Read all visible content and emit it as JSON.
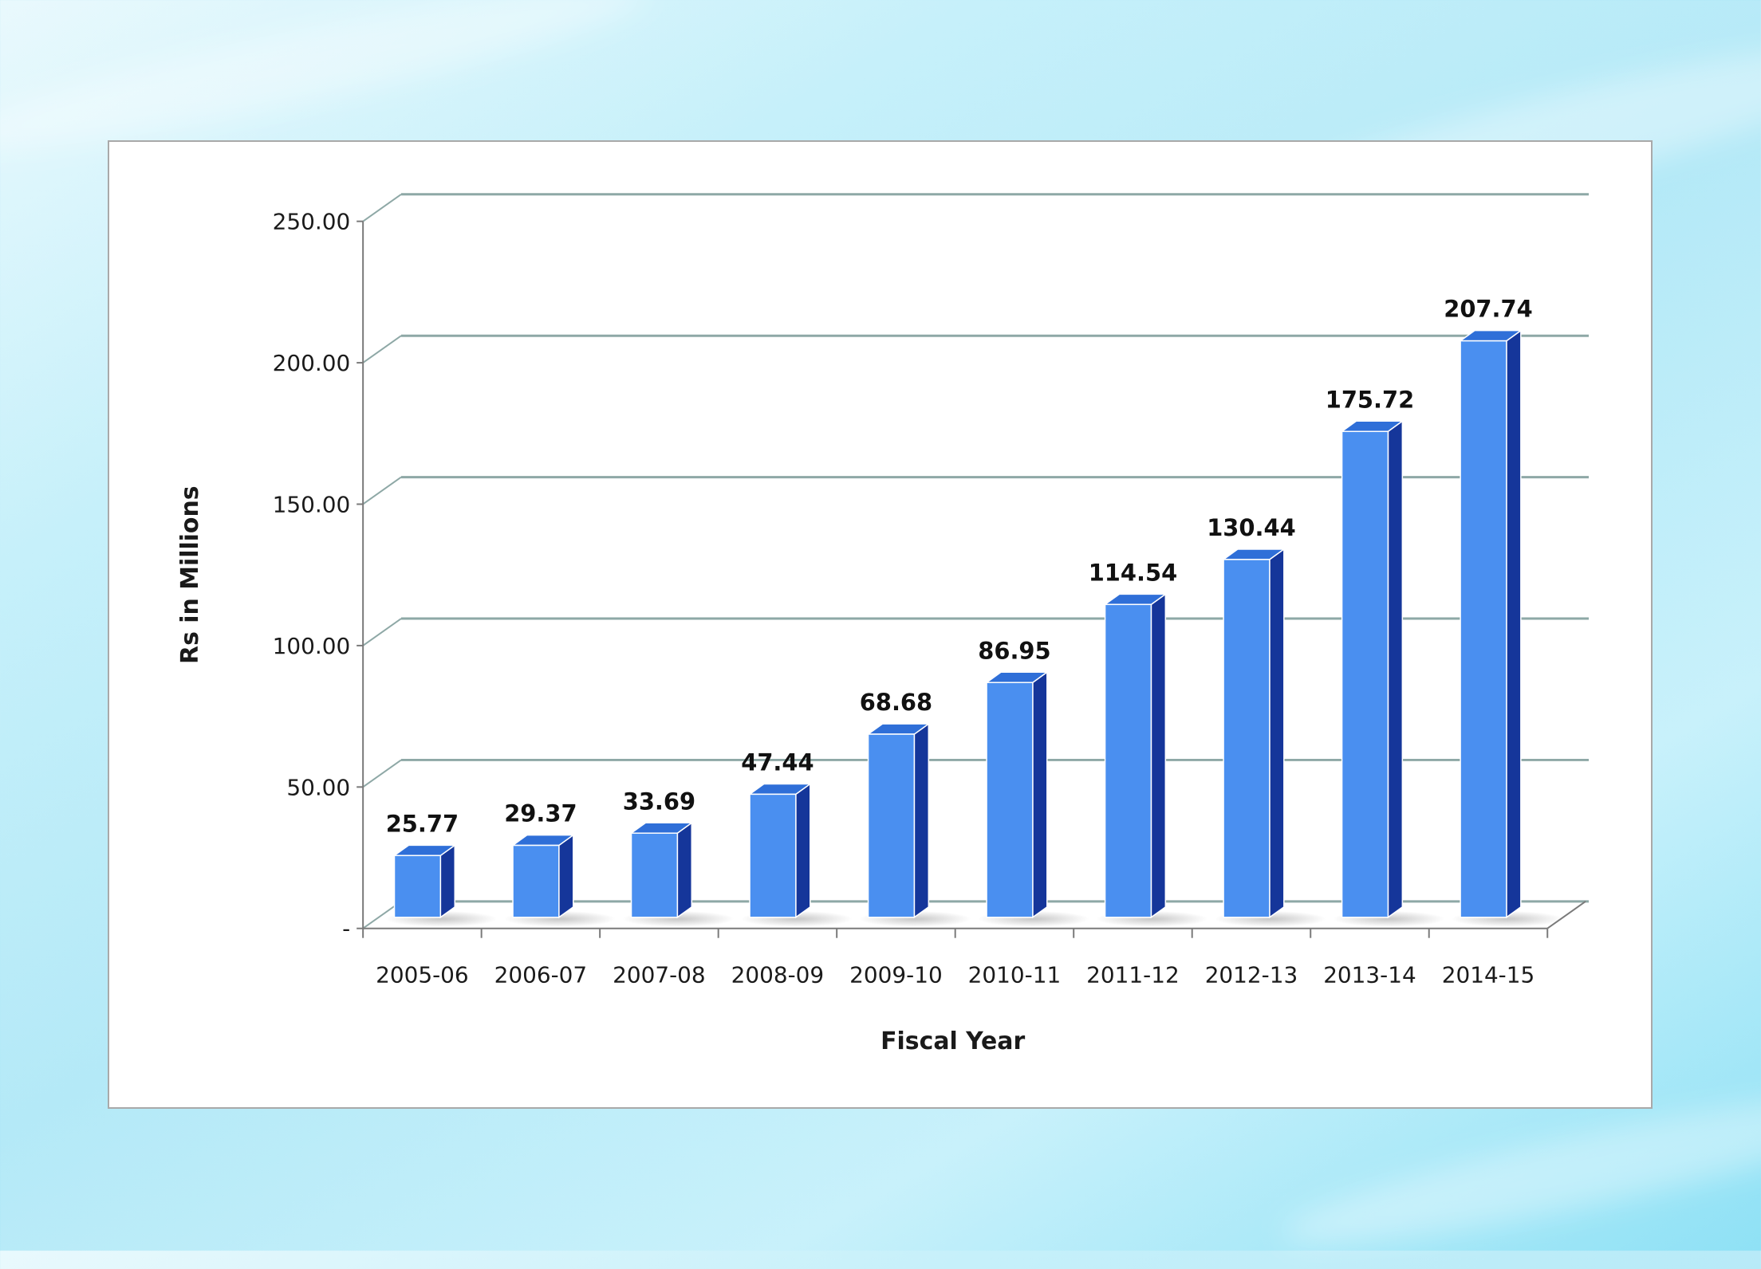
{
  "chart_data": {
    "type": "bar",
    "style": "3d-column",
    "categories": [
      "2005-06",
      "2006-07",
      "2007-08",
      "2008-09",
      "2009-10",
      "2010-11",
      "2011-12",
      "2012-13",
      "2013-14",
      "2014-15"
    ],
    "values": [
      25.77,
      29.37,
      33.69,
      47.44,
      68.68,
      86.95,
      114.54,
      130.44,
      175.72,
      207.74
    ],
    "data_labels": [
      "25.77",
      "29.37",
      "33.69",
      "47.44",
      "68.68",
      "86.95",
      "114.54",
      "130.44",
      "175.72",
      "207.74"
    ],
    "y_ticks": [
      0,
      50,
      100,
      150,
      200,
      250
    ],
    "y_tick_labels": [
      "-",
      "50.00",
      "100.00",
      "150.00",
      "200.00",
      "250.00"
    ],
    "ylim": [
      0,
      250
    ],
    "xlabel": "Fiscal Year",
    "ylabel": "Rs in Millions",
    "grid": true,
    "legend": "none",
    "colors": {
      "bar_front": "#4a8ff0",
      "bar_top": "#2f6fd8",
      "bar_side": "#15369a",
      "gridline": "#8ea8a6",
      "axis": "#7a7a7a"
    }
  }
}
